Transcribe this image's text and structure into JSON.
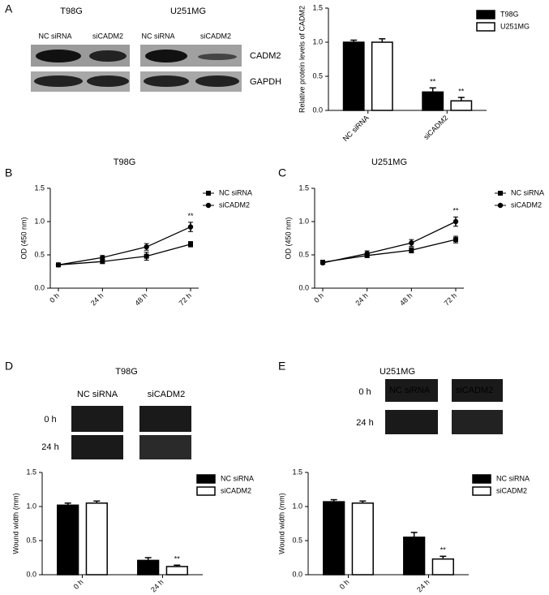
{
  "panel_labels": [
    "A",
    "B",
    "C",
    "D",
    "E"
  ],
  "blot": {
    "cell_lines": [
      "T98G",
      "U251MG"
    ],
    "conditions": [
      "NC siRNA",
      "siCADM2",
      "NC siRNA",
      "siCADM2"
    ],
    "proteins": [
      "CADM2",
      "GAPDH"
    ]
  },
  "wound": [
    {
      "title": "T98G",
      "conditions": [
        "NC siRNA",
        "siCADM2"
      ],
      "times": [
        "0 h",
        "24 h"
      ]
    },
    {
      "title": "U251MG",
      "conditions": [
        "NC siRNA",
        "siCADM2"
      ],
      "times": [
        "0 h",
        "24 h"
      ]
    }
  ],
  "chart_data": [
    {
      "type": "bar",
      "ylabel": "Relative protein levels of CADM2",
      "categories": [
        "NC siRNA",
        "siCADM2"
      ],
      "series": [
        {
          "name": "T98G",
          "color": "#000000",
          "values": [
            1.0,
            0.27
          ],
          "errors": [
            0.03,
            0.06
          ],
          "significance": [
            null,
            "**"
          ]
        },
        {
          "name": "U251MG",
          "color": "#ffffff",
          "values": [
            1.0,
            0.14
          ],
          "errors": [
            0.05,
            0.05
          ],
          "significance": [
            null,
            "**"
          ]
        }
      ],
      "ylim": [
        0,
        1.5
      ],
      "yticks": [
        {
          "value": 0,
          "label": "0.0"
        },
        {
          "value": 0.5,
          "label": "0.5"
        },
        {
          "value": 1,
          "label": "1.0"
        },
        {
          "value": 1.5,
          "label": "1.5"
        }
      ]
    },
    {
      "type": "line",
      "title": "T98G",
      "ylabel": "OD (450 nm)",
      "categories": [
        "0 h",
        "24 h",
        "48 h",
        "72 h"
      ],
      "series": [
        {
          "name": "NC siRNA",
          "color": "#000000",
          "marker": "square",
          "values": [
            0.35,
            0.4,
            0.48,
            0.66
          ],
          "errors": [
            0.02,
            0.03,
            0.06,
            0.04
          ],
          "significance": [
            null,
            null,
            null,
            null
          ]
        },
        {
          "name": "siCADM2",
          "color": "#000000",
          "marker": "circle",
          "values": [
            0.35,
            0.46,
            0.62,
            0.92
          ],
          "errors": [
            0.02,
            0.03,
            0.05,
            0.07
          ],
          "significance": [
            null,
            null,
            null,
            "**"
          ]
        }
      ],
      "ylim": [
        0,
        1.5
      ],
      "yticks": [
        {
          "value": 0,
          "label": "0.0"
        },
        {
          "value": 0.5,
          "label": "0.5"
        },
        {
          "value": 1,
          "label": "1.0"
        },
        {
          "value": 1.5,
          "label": "1.5"
        }
      ]
    },
    {
      "type": "line",
      "title": "U251MG",
      "ylabel": "OD (450 nm)",
      "categories": [
        "0 h",
        "24 h",
        "48 h",
        "72 h"
      ],
      "series": [
        {
          "name": "NC siRNA",
          "color": "#000000",
          "marker": "square",
          "values": [
            0.39,
            0.49,
            0.57,
            0.73
          ],
          "errors": [
            0.03,
            0.03,
            0.04,
            0.05
          ],
          "significance": [
            null,
            null,
            null,
            null
          ]
        },
        {
          "name": "siCADM2",
          "color": "#000000",
          "marker": "circle",
          "values": [
            0.38,
            0.52,
            0.68,
            1.0
          ],
          "errors": [
            0.02,
            0.04,
            0.05,
            0.07
          ],
          "significance": [
            null,
            null,
            null,
            "**"
          ]
        }
      ],
      "ylim": [
        0,
        1.5
      ],
      "yticks": [
        {
          "value": 0,
          "label": "0.0"
        },
        {
          "value": 0.5,
          "label": "0.5"
        },
        {
          "value": 1,
          "label": "1.0"
        },
        {
          "value": 1.5,
          "label": "1.5"
        }
      ]
    },
    {
      "type": "bar",
      "ylabel": "Wound width (mm)",
      "categories": [
        "0 h",
        "24 h"
      ],
      "series": [
        {
          "name": "NC siRNA",
          "color": "#000000",
          "values": [
            1.02,
            0.21
          ],
          "errors": [
            0.03,
            0.04
          ],
          "significance": [
            null,
            null
          ]
        },
        {
          "name": "siCADM2",
          "color": "#ffffff",
          "values": [
            1.05,
            0.12
          ],
          "errors": [
            0.03,
            0.02
          ],
          "significance": [
            null,
            "**"
          ]
        }
      ],
      "ylim": [
        0,
        1.5
      ],
      "yticks": [
        {
          "value": 0,
          "label": "0.0"
        },
        {
          "value": 0.5,
          "label": "0.5"
        },
        {
          "value": 1,
          "label": "1.0"
        },
        {
          "value": 1.5,
          "label": "1.5"
        }
      ]
    },
    {
      "type": "bar",
      "ylabel": "Wound width (mm)",
      "categories": [
        "0 h",
        "24 h"
      ],
      "series": [
        {
          "name": "NC siRNA",
          "color": "#000000",
          "values": [
            1.07,
            0.55
          ],
          "errors": [
            0.03,
            0.07
          ],
          "significance": [
            null,
            null
          ]
        },
        {
          "name": "siCADM2",
          "color": "#ffffff",
          "values": [
            1.05,
            0.23
          ],
          "errors": [
            0.03,
            0.04
          ],
          "significance": [
            null,
            "**"
          ]
        }
      ],
      "ylim": [
        0,
        1.5
      ],
      "yticks": [
        {
          "value": 0,
          "label": "0.0"
        },
        {
          "value": 0.5,
          "label": "0.5"
        },
        {
          "value": 1,
          "label": "1.0"
        },
        {
          "value": 1.5,
          "label": "1.5"
        }
      ]
    }
  ]
}
